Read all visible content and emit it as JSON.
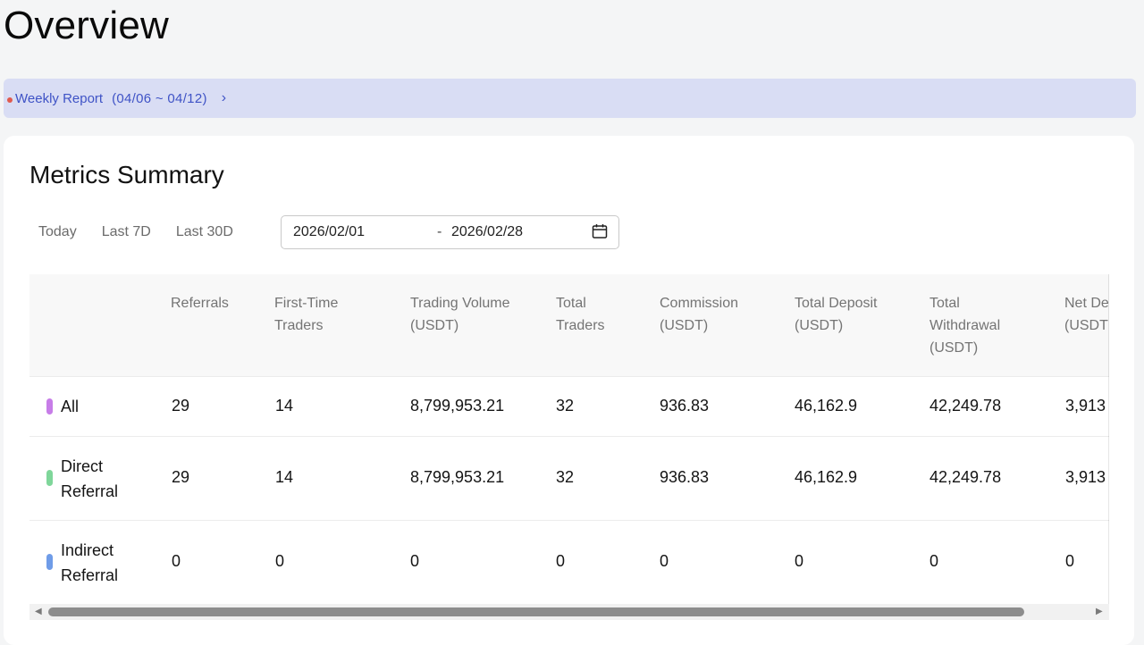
{
  "page": {
    "title": "Overview"
  },
  "banner": {
    "label": "Weekly Report",
    "range": "(04/06 ~ 04/12)",
    "chevron": "›"
  },
  "metrics": {
    "title": "Metrics Summary",
    "range_tabs": [
      "Today",
      "Last 7D",
      "Last 30D"
    ],
    "date_start": "2026/02/01",
    "date_separator": "-",
    "date_end": "2026/02/28"
  },
  "table": {
    "headers": [
      "Referrals",
      "First-Time\nTraders",
      "Trading Volume\n(USDT)",
      "Total\nTraders",
      "Commission\n(USDT)",
      "Total Deposit\n(USDT)",
      "Total\nWithdrawal\n(USDT)",
      "Net De\n(USDT"
    ],
    "rows": [
      {
        "label": "All",
        "color": "#c77de8",
        "values": [
          "29",
          "14",
          "8,799,953.21",
          "32",
          "936.83",
          "46,162.9",
          "42,249.78",
          "3,913"
        ]
      },
      {
        "label": "Direct\nReferral",
        "color": "#7fd69a",
        "values": [
          "29",
          "14",
          "8,799,953.21",
          "32",
          "936.83",
          "46,162.9",
          "42,249.78",
          "3,913"
        ]
      },
      {
        "label": "Indirect\nReferral",
        "color": "#6f9ce8",
        "values": [
          "0",
          "0",
          "0",
          "0",
          "0",
          "0",
          "0",
          "0"
        ]
      }
    ]
  },
  "scrollbar": {
    "left_arrow": "◀",
    "right_arrow": "▶"
  }
}
